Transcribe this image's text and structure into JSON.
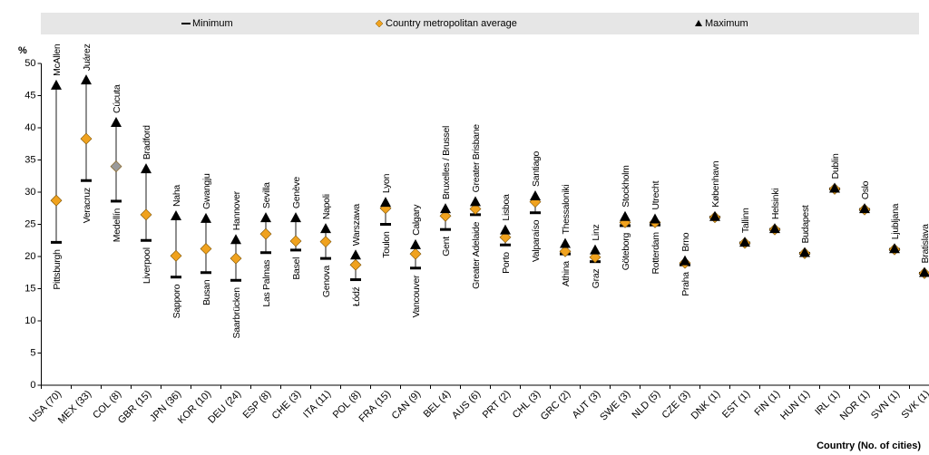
{
  "chart_data": {
    "type": "range",
    "y_label": "%",
    "x_label": "Country (No. of cities)",
    "categories": [
      "USA (70)",
      "MEX (33)",
      "COL (8)",
      "GBR (15)",
      "JPN (36)",
      "KOR (10)",
      "DEU (24)",
      "ESP (8)",
      "CHE (3)",
      "ITA (11)",
      "POL (8)",
      "FRA (15)",
      "CAN (9)",
      "BEL (4)",
      "AUS (6)",
      "PRT (2)",
      "CHL (3)",
      "GRC (2)",
      "AUT (3)",
      "SWE (3)",
      "NLD (5)",
      "CZE (3)",
      "DNK (1)",
      "EST (1)",
      "FIN (1)",
      "HUN (1)",
      "IRL (1)",
      "NOR (1)",
      "SVN (1)",
      "SVK (1)"
    ],
    "series": [
      {
        "name": "Minimum",
        "color": "#000000",
        "values": [
          22.2,
          31.8,
          28.6,
          22.5,
          16.8,
          17.5,
          16.3,
          20.6,
          21.0,
          19.7,
          16.4,
          25.0,
          18.2,
          24.2,
          26.5,
          21.8,
          26.8,
          20.4,
          19.2,
          24.8,
          24.9,
          18.7,
          26.1,
          22.1,
          24.2,
          20.5,
          30.5,
          27.3,
          21.1,
          17.4
        ],
        "cities": [
          "Pittsburgh",
          "Veracruz",
          "Medellín",
          "Liverpool",
          "Sapporo",
          "Busan",
          "Saarbrücken",
          "Las Palmas",
          "Basel",
          "Genova",
          "Łódź",
          "Toulon",
          "Vancouver",
          "Gent",
          "Greater Adelaide",
          "Porto",
          "Valparaíso",
          "Athina",
          "Graz",
          "Göteborg",
          "Rotterdam",
          "Praha",
          null,
          null,
          null,
          null,
          null,
          null,
          null,
          null
        ]
      },
      {
        "name": "Country metropolitan average",
        "color": "#f0a21e",
        "values": [
          28.7,
          38.3,
          34.0,
          26.5,
          20.1,
          21.2,
          19.7,
          23.5,
          22.4,
          22.3,
          18.7,
          27.5,
          20.4,
          26.3,
          27.4,
          23.0,
          28.5,
          20.8,
          19.9,
          25.3,
          25.3,
          19.0,
          26.1,
          22.1,
          24.2,
          20.5,
          30.5,
          27.3,
          21.1,
          17.4
        ],
        "colors": [
          "#f0a21e",
          "#f0a21e",
          "#9a9a9a",
          "#f0a21e",
          "#f0a21e",
          "#f0a21e",
          "#f0a21e",
          "#f0a21e",
          "#f0a21e",
          "#f0a21e",
          "#f0a21e",
          "#f0a21e",
          "#f0a21e",
          "#f0a21e",
          "#f0a21e",
          "#f0a21e",
          "#f0a21e",
          "#f0a21e",
          "#f0a21e",
          "#f0a21e",
          "#f0a21e",
          "#f0a21e",
          "#f0a21e",
          "#f0a21e",
          "#f0a21e",
          "#f0a21e",
          "#f0a21e",
          "#f0a21e",
          "#f0a21e",
          "#f0a21e"
        ]
      },
      {
        "name": "Maximum",
        "color": "#000000",
        "values": [
          46.5,
          47.3,
          40.7,
          33.5,
          26.2,
          25.8,
          22.5,
          25.9,
          25.9,
          24.2,
          20.1,
          28.3,
          21.7,
          27.3,
          28.4,
          24.0,
          29.3,
          21.9,
          20.9,
          26.1,
          25.7,
          19.2,
          26.1,
          22.1,
          24.2,
          20.5,
          30.5,
          27.3,
          21.1,
          17.4
        ],
        "cities": [
          "McAllen",
          "Juárez",
          "Cúcuta",
          "Bradford",
          "Naha",
          "Gwangju",
          "Hannover",
          "Sevilla",
          "Genève",
          "Napoli",
          "Warszawa",
          "Lyon",
          "Calgary",
          "Bruxelles / Brussel",
          "Greater Brisbane",
          "Lisboa",
          "Santiago",
          "Thessaloniki",
          "Linz",
          "Stockholm",
          "Utrecht",
          "Brno",
          "København",
          "Tallinn",
          "Helsinki",
          "Budapest",
          "Dublin",
          "Oslo",
          "Ljubljana",
          "Bratislava"
        ]
      }
    ],
    "ylim": [
      0,
      50
    ],
    "yticks": [
      0,
      5,
      10,
      15,
      20,
      25,
      30,
      35,
      40,
      45,
      50
    ]
  }
}
